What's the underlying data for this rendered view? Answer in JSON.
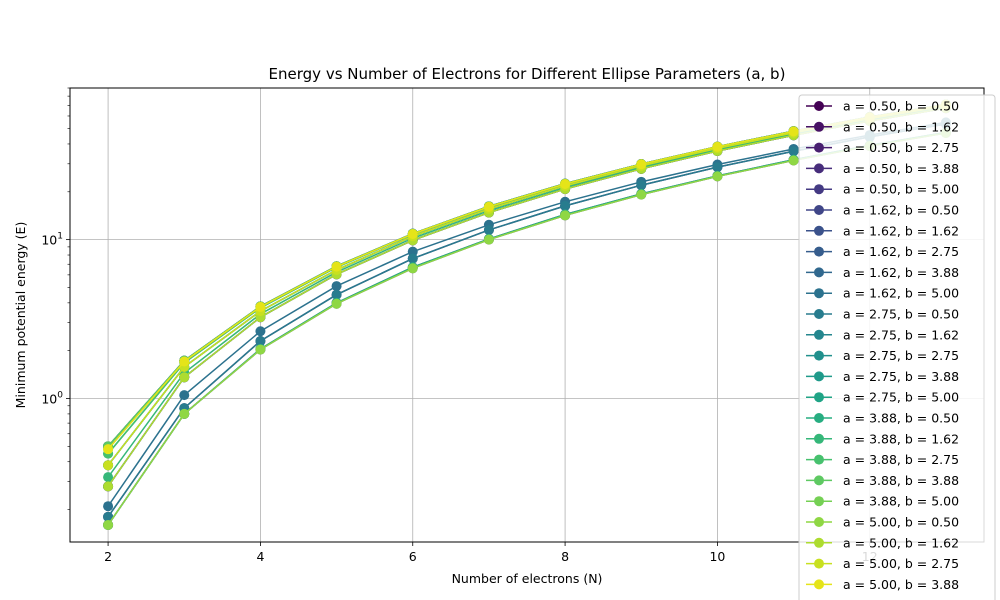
{
  "chart_data": {
    "type": "line",
    "title": "Energy vs Number of Electrons for Different Ellipse Parameters (a, b)",
    "xlabel": "Number of electrons (N)",
    "ylabel": "Minimum potential energy (E)",
    "x": [
      2,
      3,
      4,
      5,
      6,
      7,
      8,
      9,
      10,
      11,
      12,
      13
    ],
    "xlim": [
      1.5,
      13.5
    ],
    "ylim": [
      0.125,
      90
    ],
    "yscale": "log",
    "xticks": [
      2,
      4,
      6,
      8,
      10,
      12
    ],
    "yticks": [
      {
        "value": 1,
        "base": "10",
        "exp": "0"
      },
      {
        "value": 10,
        "base": "10",
        "exp": "1"
      }
    ],
    "grid": true,
    "legend_position": "upper-right",
    "marker": "circle",
    "series": [
      {
        "name": "a = 0.50, b = 0.50",
        "color": "#440154",
        "values": [
          0.5,
          1.73,
          3.8,
          6.8,
          10.9,
          16.2,
          22.5,
          29.9,
          38.5,
          48.2,
          59.1,
          70.9
        ]
      },
      {
        "name": "a = 0.50, b = 1.62",
        "color": "#471164",
        "values": [
          0.28,
          1.36,
          3.25,
          6.05,
          9.9,
          14.8,
          20.8,
          27.9,
          36.1,
          45.4,
          55.8,
          67.2
        ]
      },
      {
        "name": "a = 0.50, b = 2.75",
        "color": "#481f70",
        "values": [
          0.18,
          0.87,
          2.3,
          4.5,
          7.6,
          11.5,
          16.3,
          22.0,
          28.6,
          36.0,
          44.3,
          53.4
        ]
      },
      {
        "name": "a = 0.50, b = 3.88",
        "color": "#472d7b",
        "values": [
          0.16,
          0.8,
          2.05,
          4.0,
          6.7,
          10.1,
          14.4,
          19.4,
          25.2,
          31.8,
          39.2,
          47.3
        ]
      },
      {
        "name": "a = 0.50, b = 5.00",
        "color": "#443a83",
        "values": [
          0.16,
          0.8,
          2.03,
          3.95,
          6.6,
          10.0,
          14.2,
          19.2,
          25.0,
          31.5,
          38.8,
          46.9
        ]
      },
      {
        "name": "a = 1.62, b = 0.50",
        "color": "#404688",
        "values": [
          0.28,
          1.36,
          3.25,
          6.05,
          9.9,
          14.8,
          20.8,
          27.9,
          36.1,
          45.4,
          55.8,
          67.2
        ]
      },
      {
        "name": "a = 1.62, b = 1.62",
        "color": "#3b528b",
        "values": [
          0.5,
          1.73,
          3.8,
          6.8,
          10.9,
          16.2,
          22.5,
          29.9,
          38.5,
          48.2,
          59.1,
          70.9
        ]
      },
      {
        "name": "a = 1.62, b = 2.75",
        "color": "#365d8d",
        "values": [
          0.38,
          1.58,
          3.55,
          6.45,
          10.5,
          15.6,
          21.8,
          29.1,
          37.5,
          47.0,
          57.6,
          69.3
        ]
      },
      {
        "name": "a = 1.62, b = 3.88",
        "color": "#31688e",
        "values": [
          0.28,
          1.36,
          3.25,
          6.05,
          9.9,
          14.8,
          20.8,
          27.9,
          36.1,
          45.4,
          55.8,
          67.2
        ]
      },
      {
        "name": "a = 1.62, b = 5.00",
        "color": "#2c728e",
        "values": [
          0.21,
          1.05,
          2.65,
          5.1,
          8.4,
          12.4,
          17.3,
          23.1,
          29.7,
          37.2,
          45.5,
          54.7
        ]
      },
      {
        "name": "a = 2.75, b = 0.50",
        "color": "#287c8e",
        "values": [
          0.18,
          0.87,
          2.3,
          4.5,
          7.6,
          11.5,
          16.3,
          22.0,
          28.6,
          36.0,
          44.3,
          53.4
        ]
      },
      {
        "name": "a = 2.75, b = 1.62",
        "color": "#24868e",
        "values": [
          0.38,
          1.58,
          3.55,
          6.45,
          10.5,
          15.6,
          21.8,
          29.1,
          37.5,
          47.0,
          57.6,
          69.3
        ]
      },
      {
        "name": "a = 2.75, b = 2.75",
        "color": "#21908d",
        "values": [
          0.5,
          1.73,
          3.8,
          6.8,
          10.9,
          16.2,
          22.5,
          29.9,
          38.5,
          48.2,
          59.1,
          70.9
        ]
      },
      {
        "name": "a = 2.75, b = 3.88",
        "color": "#1f9a8a",
        "values": [
          0.45,
          1.68,
          3.72,
          6.7,
          10.8,
          16.0,
          22.3,
          29.7,
          38.2,
          47.8,
          58.6,
          70.4
        ]
      },
      {
        "name": "a = 2.75, b = 5.00",
        "color": "#20a486",
        "values": [
          0.38,
          1.58,
          3.55,
          6.45,
          10.5,
          15.6,
          21.8,
          29.1,
          37.5,
          47.0,
          57.6,
          69.3
        ]
      },
      {
        "name": "a = 3.88, b = 0.50",
        "color": "#27ad81",
        "values": [
          0.16,
          0.8,
          2.05,
          4.0,
          6.7,
          10.1,
          14.4,
          19.4,
          25.2,
          31.8,
          39.2,
          47.3
        ]
      },
      {
        "name": "a = 3.88, b = 1.62",
        "color": "#35b779",
        "values": [
          0.32,
          1.45,
          3.4,
          6.25,
          10.2,
          15.2,
          21.3,
          28.5,
          36.8,
          46.2,
          56.7,
          68.2
        ]
      },
      {
        "name": "a = 3.88, b = 2.75",
        "color": "#47c16e",
        "values": [
          0.45,
          1.68,
          3.72,
          6.7,
          10.8,
          16.0,
          22.3,
          29.7,
          38.2,
          47.8,
          58.6,
          70.4
        ]
      },
      {
        "name": "a = 3.88, b = 3.88",
        "color": "#5ec962",
        "values": [
          0.5,
          1.73,
          3.8,
          6.8,
          10.9,
          16.2,
          22.5,
          29.9,
          38.5,
          48.2,
          59.1,
          70.9
        ]
      },
      {
        "name": "a = 3.88, b = 5.00",
        "color": "#75d054",
        "values": [
          0.48,
          1.71,
          3.77,
          6.76,
          10.85,
          16.1,
          22.4,
          29.8,
          38.4,
          48.0,
          58.9,
          70.7
        ]
      },
      {
        "name": "a = 5.00, b = 0.50",
        "color": "#8fd744",
        "values": [
          0.16,
          0.8,
          2.03,
          3.95,
          6.6,
          10.0,
          14.2,
          19.2,
          25.0,
          31.5,
          38.8,
          46.9
        ]
      },
      {
        "name": "a = 5.00, b = 1.62",
        "color": "#addc30",
        "values": [
          0.28,
          1.36,
          3.25,
          6.05,
          9.9,
          14.8,
          20.8,
          27.9,
          36.1,
          45.4,
          55.8,
          67.2
        ]
      },
      {
        "name": "a = 5.00, b = 2.75",
        "color": "#c8e020",
        "values": [
          0.38,
          1.58,
          3.55,
          6.45,
          10.5,
          15.6,
          21.8,
          29.1,
          37.5,
          47.0,
          57.6,
          69.3
        ]
      },
      {
        "name": "a = 5.00, b = 3.88",
        "color": "#e5e419",
        "values": [
          0.48,
          1.71,
          3.77,
          6.76,
          10.85,
          16.1,
          22.4,
          29.8,
          38.4,
          48.0,
          58.9,
          70.7
        ]
      }
    ]
  }
}
